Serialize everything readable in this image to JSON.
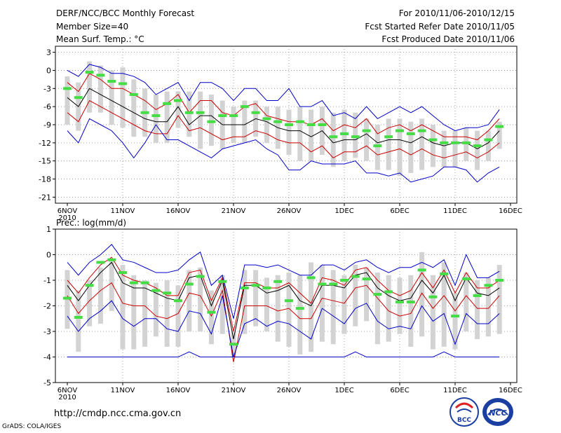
{
  "header": {
    "title": "DERF/NCC/BCC Monthly Forecast",
    "member_size": "Member Size=40",
    "variable": "Mean Surf. Temp.: °C",
    "forecast_period": "For 2010/11/06-2010/12/15",
    "fcst_started": "Fcst Started Refer Date 2010/11/05",
    "fcst_produced": "Fcst Produced Date 2010/11/06"
  },
  "footer": {
    "url": "http://cmdp.ncc.cma.gov.cn",
    "credit": "GrADS: COLA/IGES",
    "logo_bcc_label": "BCC",
    "logo_ncc_label": "NCC"
  },
  "colors": {
    "ensemble_bounds": "#0000cc",
    "spread": "#cc0000",
    "mean": "#000000",
    "observed": "#44dd44",
    "box": "#d3d3d3",
    "grid": "#888888"
  },
  "chart_data": [
    {
      "type": "line",
      "title": "Mean Surf. Temp.: °C",
      "x_tick_labels": [
        "6NOV",
        "11NOV",
        "16NOV",
        "21NOV",
        "26NOV",
        "1DEC",
        "6DEC",
        "11DEC",
        "16DEC"
      ],
      "x_tick_days": [
        0,
        5,
        10,
        15,
        20,
        25,
        30,
        35,
        40
      ],
      "first_tick_year": "2010",
      "y_ticks": [
        3,
        0,
        -3,
        -6,
        -9,
        -12,
        -15,
        -18,
        -21
      ],
      "ylim": [
        -22,
        4
      ],
      "grid": true,
      "x_days": [
        0,
        1,
        2,
        3,
        4,
        5,
        6,
        7,
        8,
        9,
        10,
        11,
        12,
        13,
        14,
        15,
        16,
        17,
        18,
        19,
        20,
        21,
        22,
        23,
        24,
        25,
        26,
        27,
        28,
        29,
        30,
        31,
        32,
        33,
        34,
        35,
        36,
        37,
        38,
        39
      ],
      "series": [
        {
          "name": "max",
          "values": [
            0,
            -1,
            1,
            0.5,
            -0.5,
            -0.5,
            -1,
            -2,
            -4,
            -3,
            -2,
            -5,
            -2,
            -2,
            -3,
            -5,
            -3,
            -3,
            -5,
            -5,
            -3,
            -6,
            -6,
            -5,
            -7.5,
            -7,
            -8,
            -6,
            -8,
            -7,
            -6,
            -7,
            -6,
            -7.5,
            -9,
            -10,
            -9.5,
            -9.5,
            -9,
            -6.5
          ]
        },
        {
          "name": "upper",
          "values": [
            -2,
            -3.5,
            -0.5,
            -1.5,
            -3,
            -3,
            -4,
            -5,
            -6.5,
            -5.5,
            -4,
            -7,
            -5,
            -5,
            -7,
            -7.5,
            -6,
            -5.5,
            -7.5,
            -8,
            -8.5,
            -8.5,
            -9,
            -8,
            -10,
            -9,
            -9.5,
            -8,
            -10.5,
            -9.5,
            -9,
            -10,
            -9,
            -10,
            -11,
            -11,
            -11,
            -11.5,
            -10,
            -8
          ]
        },
        {
          "name": "mean",
          "values": [
            -4.5,
            -6,
            -3,
            -4,
            -5,
            -6,
            -7,
            -8,
            -8.5,
            -8.5,
            -6,
            -9,
            -7.5,
            -7.5,
            -9,
            -9,
            -9,
            -8,
            -8.5,
            -9.5,
            -10,
            -10,
            -11,
            -10,
            -12,
            -11.5,
            -11.5,
            -10.5,
            -12,
            -11.5,
            -11.5,
            -12,
            -11,
            -12,
            -12.5,
            -12,
            -12,
            -13,
            -12,
            -10
          ]
        },
        {
          "name": "lower",
          "values": [
            -7,
            -8.5,
            -5,
            -6,
            -7,
            -8,
            -9,
            -10,
            -10.5,
            -10.5,
            -7.5,
            -10,
            -9.5,
            -10.5,
            -11.5,
            -11,
            -11,
            -10,
            -10.5,
            -11.5,
            -12,
            -12,
            -13.5,
            -12.5,
            -14.5,
            -13.5,
            -13.5,
            -12.5,
            -14,
            -13.5,
            -13,
            -14,
            -13,
            -14,
            -14.5,
            -14,
            -13.5,
            -14.5,
            -13.5,
            -12
          ]
        },
        {
          "name": "min",
          "values": [
            -10,
            -12,
            -8,
            -9,
            -10,
            -12,
            -14.5,
            -12,
            -9,
            -11.5,
            -11.5,
            -12.5,
            -13.5,
            -14.5,
            -13,
            -12.5,
            -12,
            -11.5,
            -13,
            -14,
            -16.5,
            -16.5,
            -15,
            -15.5,
            -15.5,
            -15.5,
            -15,
            -17,
            -17,
            -17.5,
            -17,
            -18.5,
            -18,
            -17.5,
            -16,
            -16,
            -16.5,
            -18.5,
            -17,
            -16
          ]
        },
        {
          "name": "box_top",
          "values": [
            -1,
            -2,
            1.5,
            0.8,
            0,
            0.5,
            -1.5,
            -3,
            -4,
            -3.5,
            -3.5,
            -3.5,
            -3.5,
            -4,
            -5,
            -6,
            -5,
            -5,
            -6,
            -6,
            -6.5,
            -6,
            -6.5,
            -6,
            -7,
            -6.5,
            -7,
            -8,
            -9,
            -8,
            -8,
            -8.5,
            -8,
            -9,
            -10,
            -10,
            -9.5,
            -10,
            -10,
            -8.5
          ]
        },
        {
          "name": "box_bottom",
          "values": [
            -9,
            -10,
            -7,
            -7,
            -9,
            -9.5,
            -11,
            -11,
            -12,
            -12,
            -9.5,
            -11,
            -13,
            -12.5,
            -13,
            -12,
            -12,
            -11,
            -12,
            -13,
            -14,
            -15,
            -15,
            -14,
            -16,
            -15,
            -14.5,
            -15,
            -16.5,
            -16.5,
            -17.5,
            -17,
            -16.5,
            -16,
            -16,
            -16,
            -15,
            -16.5,
            -15,
            -13
          ]
        },
        {
          "name": "observed",
          "values": [
            -3,
            -4.5,
            -0.3,
            -0.8,
            -1.8,
            -2.2,
            -4,
            -7,
            -7.5,
            -5.5,
            -5,
            -7,
            -7,
            -8.5,
            -7.5,
            -7.5,
            -6,
            -7,
            -8,
            -8.5,
            -9,
            -8.5,
            -9,
            -9,
            -11,
            -10.5,
            -11,
            -10,
            -12.5,
            -11,
            -10,
            -10.5,
            -10,
            -11.5,
            -12,
            -12,
            -12,
            -12.5,
            -11.5,
            -9.3
          ]
        }
      ]
    },
    {
      "type": "line",
      "title": "Prec.: log(mm/d)",
      "x_tick_labels": [
        "6NOV",
        "11NOV",
        "16NOV",
        "21NOV",
        "26NOV",
        "1DEC",
        "6DEC",
        "11DEC",
        "16DEC"
      ],
      "x_tick_days": [
        0,
        5,
        10,
        15,
        20,
        25,
        30,
        35,
        40
      ],
      "first_tick_year": "2010",
      "y_ticks": [
        1,
        0,
        -1,
        -2,
        -3,
        -4,
        -5
      ],
      "ylim": [
        -5,
        1
      ],
      "grid": true,
      "x_days": [
        0,
        1,
        2,
        3,
        4,
        5,
        6,
        7,
        8,
        9,
        10,
        11,
        12,
        13,
        14,
        15,
        16,
        17,
        18,
        19,
        20,
        21,
        22,
        23,
        24,
        25,
        26,
        27,
        28,
        29,
        30,
        31,
        32,
        33,
        34,
        35,
        36,
        37,
        38,
        39
      ],
      "series": [
        {
          "name": "max",
          "values": [
            -0.3,
            -0.8,
            -0.3,
            0,
            0.4,
            -0.2,
            -0.3,
            -0.5,
            -0.7,
            -0.7,
            -0.6,
            -0.2,
            0.1,
            -1.2,
            -0.8,
            -2.5,
            -0.4,
            -0.4,
            -0.5,
            -0.4,
            -0.6,
            -0.8,
            -0.8,
            -0.4,
            -0.4,
            -0.6,
            -0.3,
            -0.2,
            -0.5,
            -0.7,
            -0.5,
            -0.5,
            -0.3,
            -0.5,
            -0.2,
            -1.2,
            0,
            -0.9,
            -0.9,
            -0.65
          ]
        },
        {
          "name": "upper",
          "values": [
            -1,
            -1.5,
            -0.9,
            -0.4,
            -0.1,
            -0.8,
            -1,
            -1.1,
            -1.3,
            -1.6,
            -1.6,
            -0.7,
            -0.6,
            -1.8,
            -0.9,
            -3,
            -1.1,
            -1.1,
            -1.3,
            -1.3,
            -1.1,
            -1.5,
            -1.9,
            -0.9,
            -1,
            -1.2,
            -0.6,
            -0.5,
            -1,
            -1.4,
            -1.6,
            -1.4,
            -0.7,
            -1.3,
            -0.6,
            -1.5,
            -0.7,
            -1.3,
            -1.3,
            -1
          ]
        },
        {
          "name": "mean",
          "values": [
            -1.2,
            -1.8,
            -1.2,
            -0.7,
            -0.3,
            -1.1,
            -1.3,
            -1.3,
            -1.5,
            -1.7,
            -1.8,
            -0.9,
            -0.8,
            -2,
            -1,
            -3.3,
            -1.2,
            -1.2,
            -1.5,
            -1.4,
            -1.2,
            -1.8,
            -2,
            -1.2,
            -1.2,
            -1.3,
            -0.8,
            -0.7,
            -1.3,
            -1.6,
            -1.8,
            -1.7,
            -1,
            -1.5,
            -0.8,
            -1.8,
            -0.9,
            -1.5,
            -1.6,
            -1.3
          ]
        },
        {
          "name": "lower",
          "values": [
            -1.6,
            -2.3,
            -1.8,
            -1.4,
            -1.1,
            -1.9,
            -2,
            -2,
            -2.4,
            -2.5,
            -2.3,
            -1.5,
            -1.6,
            -2.4,
            -1.4,
            -4.2,
            -2,
            -2,
            -2,
            -2.2,
            -2.1,
            -2.5,
            -2.5,
            -1.7,
            -1.8,
            -1.9,
            -1.3,
            -1.2,
            -1.7,
            -2.2,
            -2.4,
            -2.3,
            -1.5,
            -2.1,
            -1.6,
            -2.2,
            -1.6,
            -2.1,
            -2.1,
            -1.6
          ]
        },
        {
          "name": "min",
          "values": [
            -2.4,
            -3,
            -2.5,
            -2.2,
            -1.8,
            -2.5,
            -2.8,
            -2.5,
            -2.5,
            -2.9,
            -3,
            -2.2,
            -2.3,
            -3.1,
            -1.6,
            -4,
            -2.7,
            -2.5,
            -2.8,
            -2.6,
            -2.7,
            -3,
            -3.3,
            -2.1,
            -2.4,
            -2.7,
            -2.1,
            -1.9,
            -2.6,
            -2.9,
            -2.8,
            -2.9,
            -2,
            -2.6,
            -2.3,
            -3.5,
            -2.3,
            -2.7,
            -2.7,
            -2.3
          ]
        },
        {
          "name": "min_floor",
          "values": [
            -4,
            -4,
            -4,
            -4,
            -4,
            -4,
            -4,
            -4,
            -4,
            -4,
            -4,
            -3.8,
            -4,
            -4,
            -4,
            -4,
            -4,
            -4,
            -4,
            -4,
            -4,
            -4,
            -4,
            -4,
            -4,
            -4,
            -3.8,
            -4,
            -4,
            -4,
            -4,
            -4,
            -4,
            -4,
            -3.8,
            -4,
            -4,
            -4,
            -4,
            -4
          ]
        },
        {
          "name": "box_top",
          "values": [
            -0.6,
            -1.4,
            -1,
            -0.5,
            -0.2,
            -0.4,
            -0.8,
            -1,
            -1.1,
            -1,
            -1.2,
            -0.6,
            -0.5,
            -1.4,
            -0.8,
            -3,
            -0.6,
            -0.6,
            -0.9,
            -0.8,
            -0.7,
            -0.8,
            -0.3,
            -0.4,
            -0.6,
            -0.8,
            -0.4,
            -0.5,
            -0.7,
            -0.8,
            -0.9,
            -0.8,
            0.1,
            -0.8,
            -0.3,
            -1.5,
            -0.7,
            -1,
            -0.9,
            -0.4
          ]
        },
        {
          "name": "box_bottom",
          "values": [
            -2.9,
            -3.8,
            -2.8,
            -2.7,
            -2.2,
            -3.7,
            -3.7,
            -3.6,
            -3.2,
            -3.6,
            -3.6,
            -3,
            -3,
            -3.5,
            -3.1,
            -4,
            -3.1,
            -2.8,
            -3,
            -3.4,
            -3.6,
            -3.9,
            -3.8,
            -3.4,
            -3.5,
            -3.1,
            -2.8,
            -2.6,
            -3.5,
            -3.4,
            -3.1,
            -3.6,
            -3.2,
            -3.7,
            -3.6,
            -3.7,
            -3,
            -3.3,
            -3.2,
            -3.1
          ]
        },
        {
          "name": "observed",
          "values": [
            -1.7,
            -2.45,
            -1.2,
            -0.3,
            -0.2,
            -0.7,
            -1.1,
            -1.1,
            -1.4,
            -1.5,
            -1.8,
            -1.15,
            -0.85,
            -2.25,
            -1.05,
            -3.5,
            -1.3,
            -1.2,
            -1.3,
            -1.05,
            -1.8,
            -2.1,
            -0.9,
            -1.15,
            -1.15,
            -1.0,
            -0.85,
            -0.95,
            -1.55,
            -1.45,
            -1.85,
            -1.85,
            -0.6,
            -1.65,
            -0.75,
            -2.4,
            -0.95,
            -1.6,
            -1.2,
            -1.0
          ]
        }
      ]
    }
  ]
}
